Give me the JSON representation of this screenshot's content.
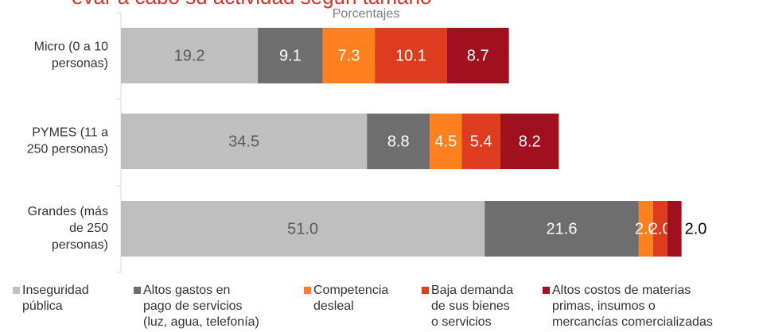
{
  "chart_data": {
    "type": "stacked-bar-horizontal",
    "title": "evar a cabo su actividad según tamaño",
    "subtitle": "Porcentajes",
    "categories": [
      [
        "Micro (0 a 10",
        "personas)"
      ],
      [
        "PYMES (11 a",
        "250 personas)"
      ],
      [
        "Grandes (más",
        "de 250",
        "personas)"
      ]
    ],
    "xlim": [
      0,
      85
    ],
    "series": [
      {
        "name": [
          "Inseguridad",
          "pública"
        ],
        "color": "#bfbfbf",
        "values": [
          19.2,
          34.5,
          51.0
        ],
        "value_labels": [
          "19.2",
          "34.5",
          "51.0"
        ]
      },
      {
        "name": [
          "Altos gastos en",
          "pago de servicios",
          "(luz, agua, telefonía)"
        ],
        "color": "#6e6e6e",
        "values": [
          9.1,
          8.8,
          21.6
        ],
        "value_labels": [
          "9.1",
          "8.8",
          "21.6"
        ]
      },
      {
        "name": [
          "Competencia",
          "desleal"
        ],
        "color": "#ff801f",
        "values": [
          7.3,
          4.5,
          2.0
        ],
        "value_labels": [
          "7.3",
          "4.5",
          "2.0"
        ]
      },
      {
        "name": [
          "Baja demanda",
          "de sus bienes",
          "o servicios"
        ],
        "color": "#dd3c1e",
        "values": [
          10.1,
          5.4,
          2.0
        ],
        "value_labels": [
          "10.1",
          "5.4",
          "2.0"
        ]
      },
      {
        "name": [
          "Altos costos de materias",
          "primas, insumos o",
          "mercancías comercializadas"
        ],
        "color": "#a1101f",
        "values": [
          8.7,
          8.2,
          2.0
        ],
        "value_labels": [
          "8.7",
          "8.2",
          "2.0"
        ]
      }
    ]
  }
}
